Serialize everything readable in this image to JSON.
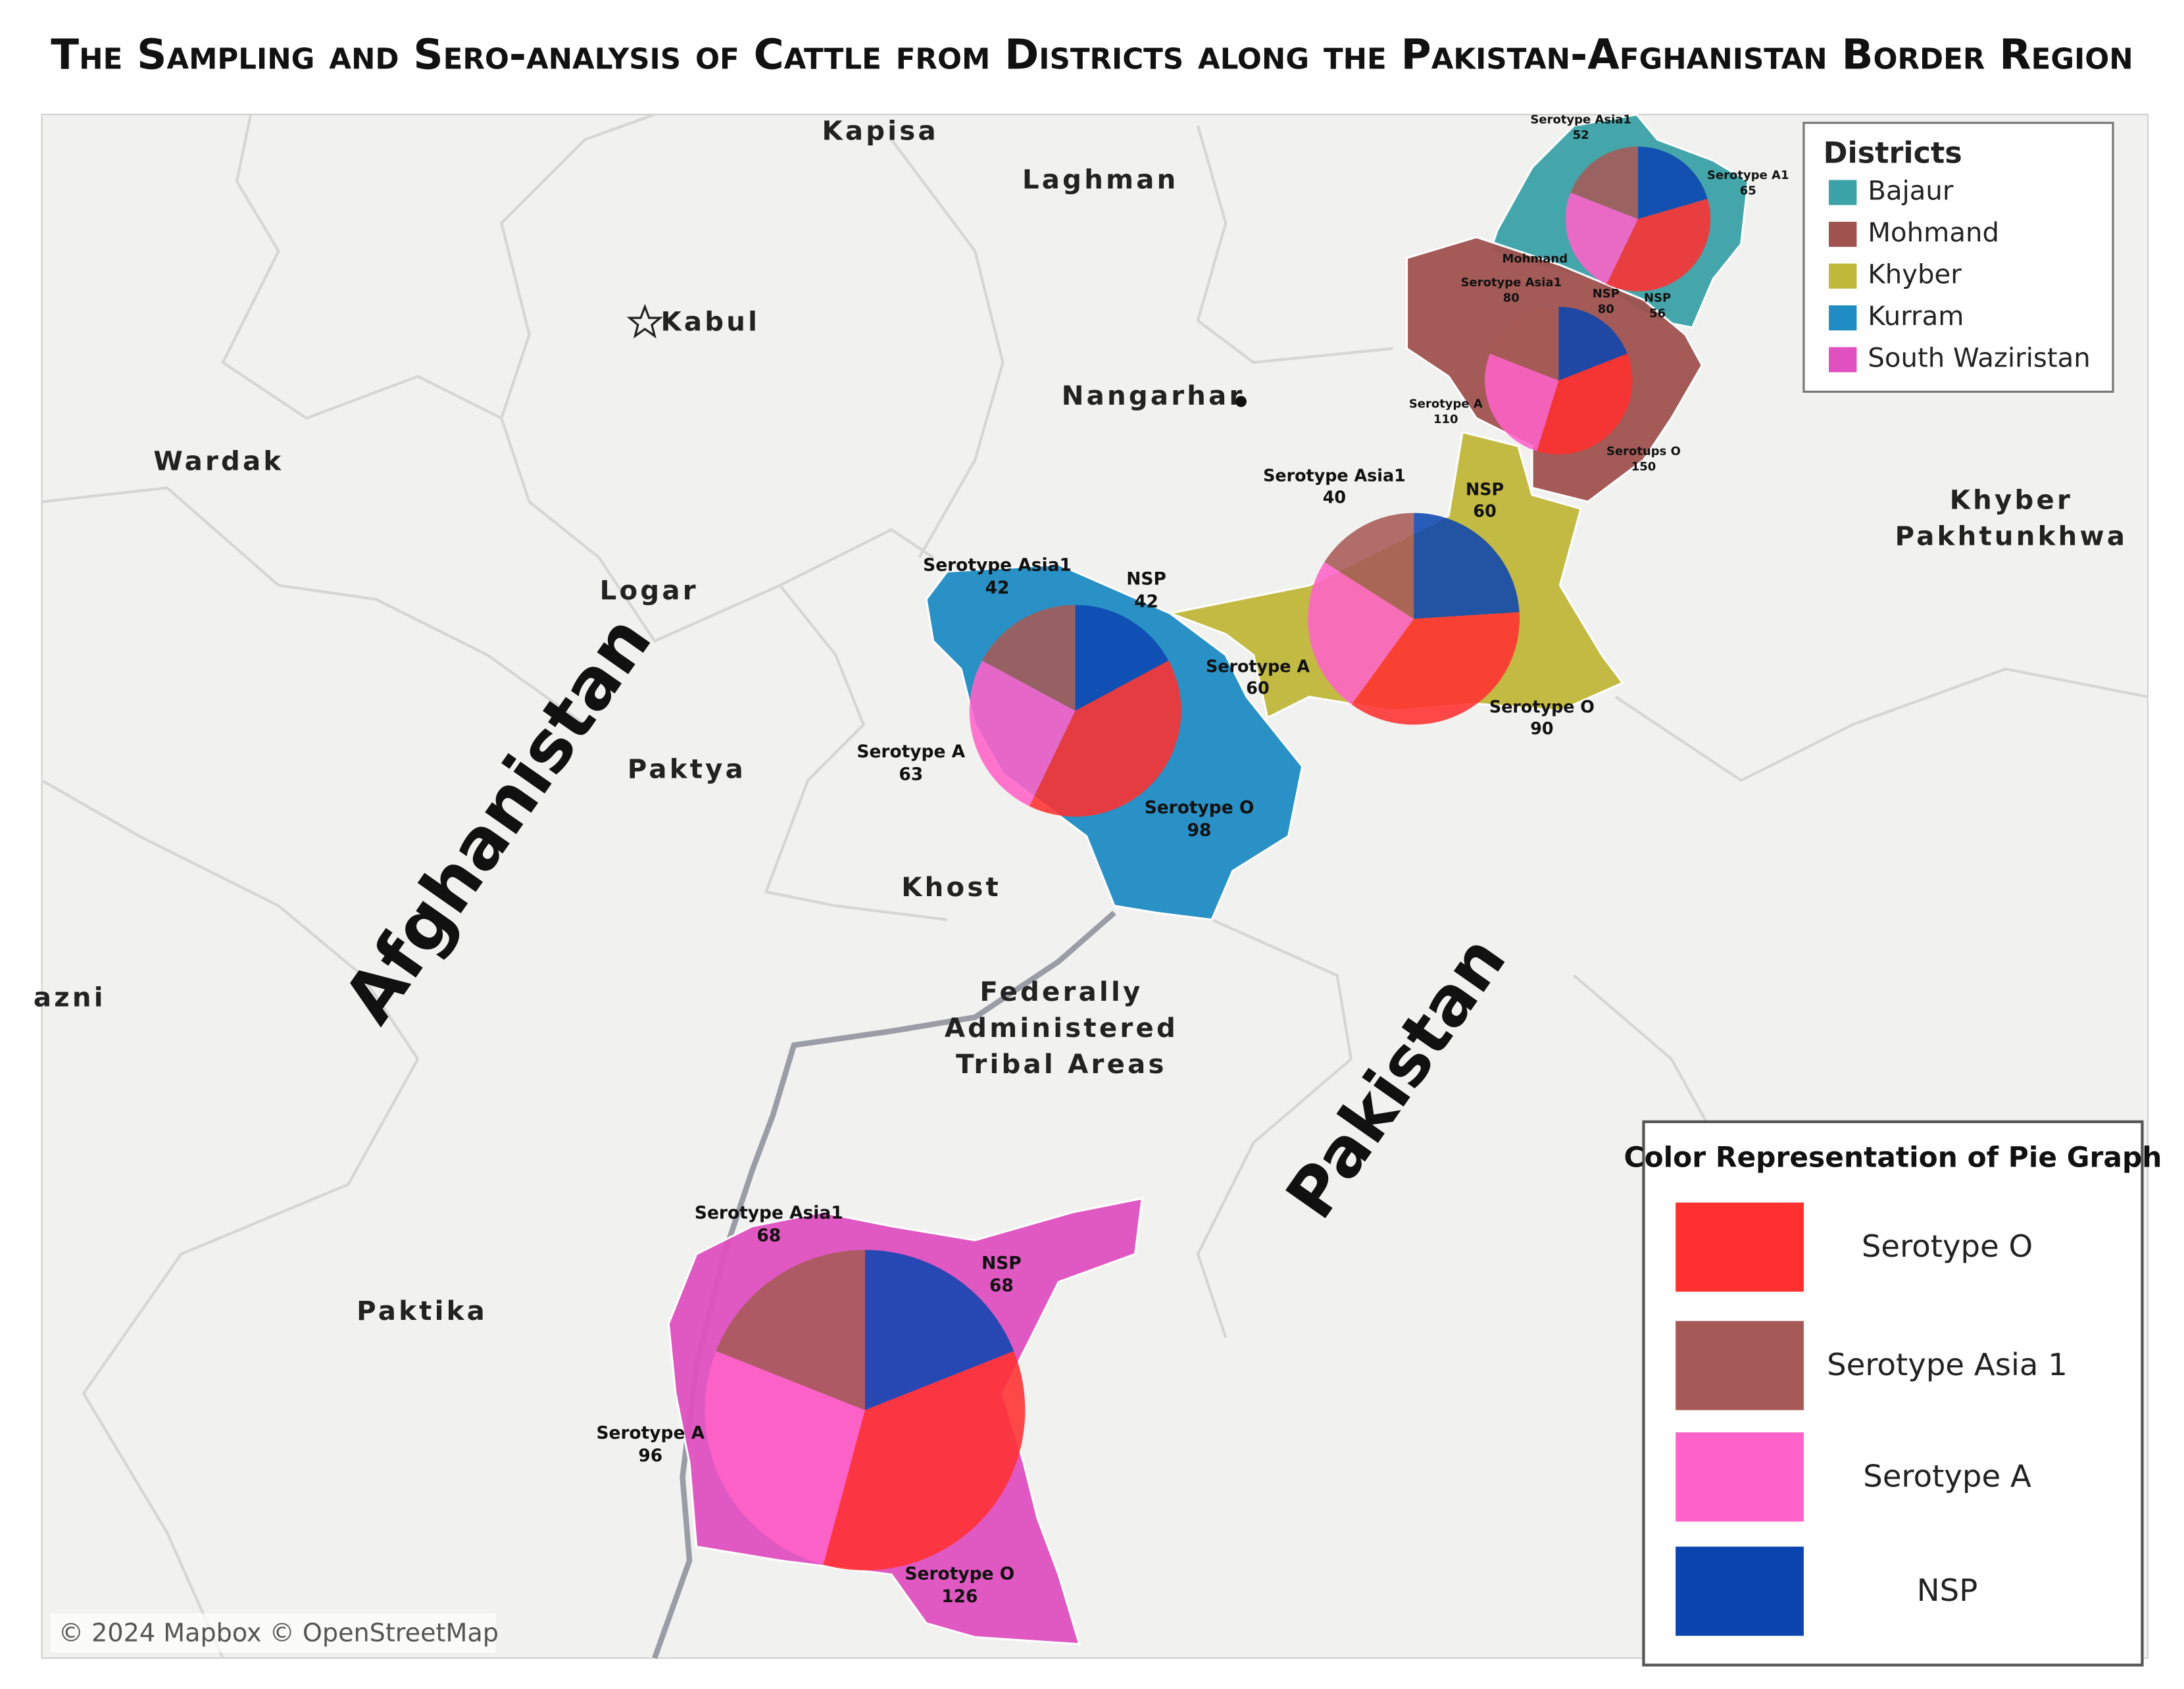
{
  "title": "The Sampling and Sero-analysis of Cattle from Districts along the Pakistan-Afghanistan Border Region",
  "places": [
    {
      "lines": [
        "Kapisa"
      ]
    },
    {
      "lines": [
        "Laghman"
      ]
    },
    {
      "lines": [
        "Kabul"
      ]
    },
    {
      "lines": [
        "Nangarhar"
      ]
    },
    {
      "lines": [
        "Wardak"
      ]
    },
    {
      "lines": [
        "Logar"
      ]
    },
    {
      "lines": [
        "Paktya"
      ]
    },
    {
      "lines": [
        "Khost"
      ]
    },
    {
      "lines": [
        "Paktika"
      ]
    },
    {
      "lines": [
        "azni"
      ]
    },
    {
      "lines": [
        "Federally",
        "Administered",
        "Tribal Areas"
      ]
    },
    {
      "lines": [
        "Khyber",
        "Pakhtunkhwa"
      ]
    }
  ],
  "countries": [
    "Afghanistan",
    "Pakistan"
  ],
  "attribution": "© 2024 Mapbox © OpenStreetMap",
  "districts_legend": {
    "title": "Districts"
  },
  "pie_legend": {
    "title": "Color Representation of Pie Graph",
    "series": [
      {
        "name": "Serotype O",
        "color": "#ff3030"
      },
      {
        "name": "Serotype Asia 1",
        "color": "#a65a57"
      },
      {
        "name": "Serotype A",
        "color": "#ff62c8"
      },
      {
        "name": "NSP",
        "color": "#0c45b0"
      }
    ]
  },
  "districts": [
    {
      "name": "Bajaur",
      "color": "#3ba3a8",
      "slices": [
        {
          "value": 100
        },
        {
          "label": "Serotype Asia1",
          "value": 52
        },
        {
          "label": "Serotype A1",
          "value": 65
        },
        {
          "label": "NSP",
          "value": 56
        }
      ]
    },
    {
      "name": "Mohmand",
      "color": "#a0524f",
      "map_label": "Mohmand",
      "slices": [
        {
          "label": "Serotups O",
          "value": 150
        },
        {
          "label": "Serotype Asia1",
          "value": 80
        },
        {
          "label": "Serotype A",
          "value": 110
        },
        {
          "label": "NSP",
          "value": 80
        }
      ]
    },
    {
      "name": "Khyber",
      "color": "#c0b83a",
      "slices": [
        {
          "label": "Serotype O",
          "value": 90
        },
        {
          "label": "Serotype Asia1",
          "value": 40
        },
        {
          "label": "Serotype A",
          "value": 60
        },
        {
          "label": "NSP",
          "value": 60
        }
      ]
    },
    {
      "name": "Kurram",
      "color": "#1f8cc4",
      "slices": [
        {
          "label": "Serotype O",
          "value": 98
        },
        {
          "label": "Serotype Asia1",
          "value": 42
        },
        {
          "label": "Serotype A",
          "value": 63
        },
        {
          "label": "NSP",
          "value": 42
        }
      ]
    },
    {
      "name": "South Waziristan",
      "color": "#e050c0",
      "slices": [
        {
          "label": "Serotype O",
          "value": 126
        },
        {
          "label": "Serotype Asia1",
          "value": 68
        },
        {
          "label": "Serotype A",
          "value": 96
        },
        {
          "label": "NSP",
          "value": 68
        }
      ]
    }
  ]
}
